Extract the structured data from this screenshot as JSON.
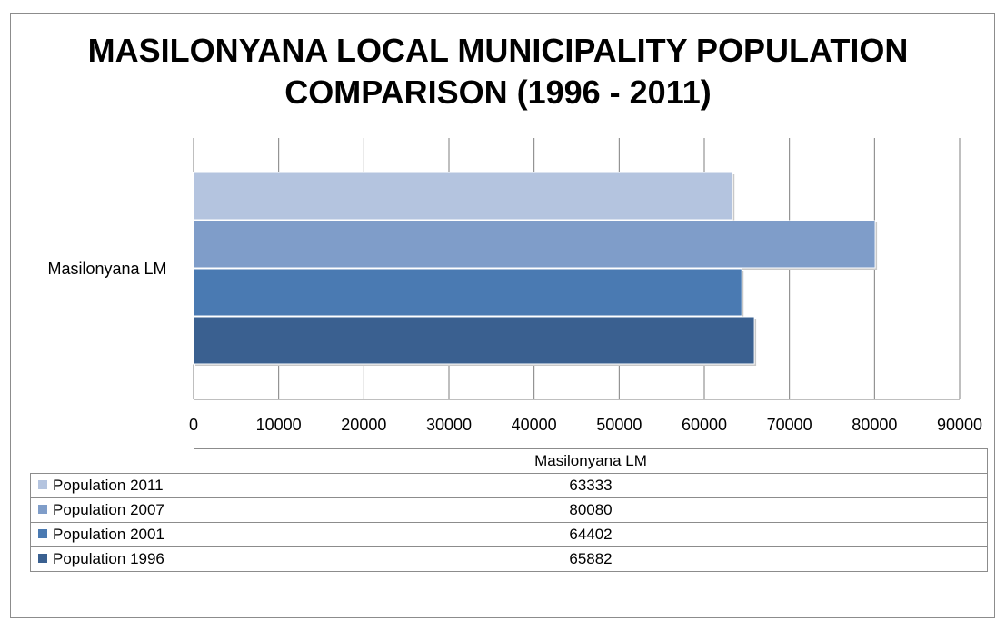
{
  "caption_fragment": "",
  "chart_data": {
    "type": "bar",
    "orientation": "horizontal",
    "title_lines": [
      "MASILONYANA LOCAL MUNICIPALITY POPULATION",
      "COMPARISON (1996 - 2011)"
    ],
    "categories": [
      "Masilonyana LM"
    ],
    "xlim": [
      0,
      90000
    ],
    "xticks": [
      0,
      10000,
      20000,
      30000,
      40000,
      50000,
      60000,
      70000,
      80000,
      90000
    ],
    "grid": true,
    "legend_position": "data-table",
    "series": [
      {
        "name": "Population 2011",
        "values": [
          63333
        ],
        "color": "#b4c4df"
      },
      {
        "name": "Population 2007",
        "values": [
          80080
        ],
        "color": "#7f9dc9"
      },
      {
        "name": "Population 2001",
        "values": [
          64402
        ],
        "color": "#4a7ab2"
      },
      {
        "name": "Population 1996",
        "values": [
          65882
        ],
        "color": "#3a6090"
      }
    ],
    "table_header": "Masilonyana LM",
    "table_values": [
      "63333",
      "80080",
      "64402",
      "65882"
    ]
  }
}
